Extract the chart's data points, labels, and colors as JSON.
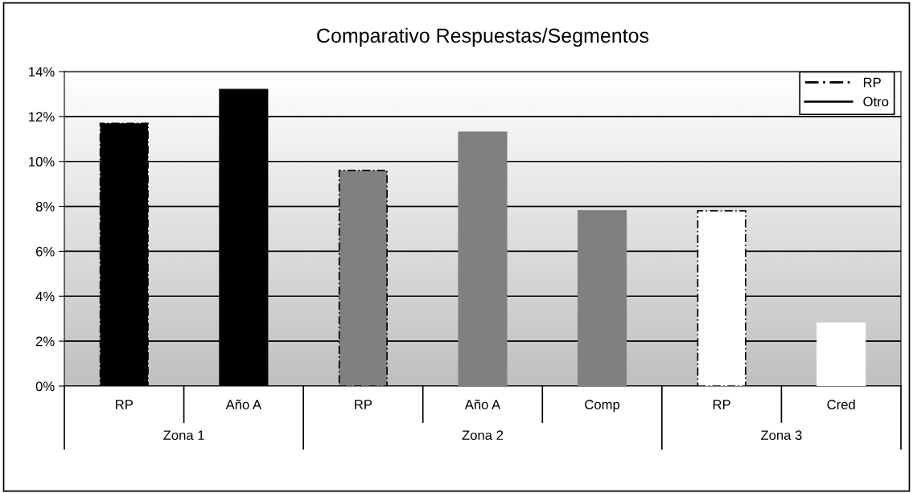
{
  "chart_data": {
    "type": "bar",
    "title": "Comparativo Respuestas/Segmentos",
    "categories": [
      "RP",
      "Año A",
      "RP",
      "Año A",
      "Comp",
      "RP",
      "Cred"
    ],
    "annotations": [
      "Zona 1",
      "Zona 2",
      "Zona 3"
    ],
    "series": [
      {
        "name": "RP",
        "color": "#000000",
        "line_style": "dashed",
        "values": [
          11.7,
          null,
          9.6,
          null,
          null,
          7.8,
          null
        ],
        "colors": [
          "#000000",
          null,
          "#808080",
          null,
          null,
          "#ffffff",
          null
        ]
      },
      {
        "name": "Otro",
        "color": "#000000",
        "line_style": "solid",
        "values": [
          null,
          13.2,
          null,
          11.3,
          7.8,
          null,
          2.8
        ],
        "colors": [
          null,
          "#000000",
          null,
          "#808080",
          "#808080",
          null,
          "#ffffff"
        ]
      }
    ],
    "ylim": [
      0,
      14
    ],
    "yticks": [
      {
        "value": 0,
        "label": "0%"
      },
      {
        "value": 2,
        "label": "2%"
      },
      {
        "value": 4,
        "label": "4%"
      },
      {
        "value": 6,
        "label": "6%"
      },
      {
        "value": 8,
        "label": "8%"
      },
      {
        "value": 10,
        "label": "10%"
      },
      {
        "value": 12,
        "label": "12%"
      },
      {
        "value": 14,
        "label": "14%"
      }
    ],
    "grid": "y",
    "legend": "top right"
  }
}
